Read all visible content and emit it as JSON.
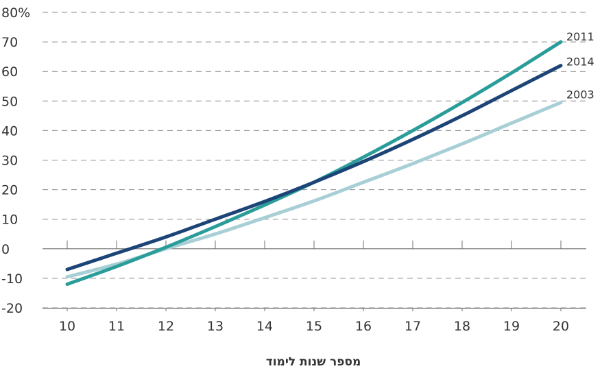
{
  "chart_data": {
    "type": "line",
    "xlabel": "מספר שנות לימוד",
    "ylabel": "",
    "x": [
      10,
      11,
      12,
      13,
      14,
      15,
      16,
      17,
      18,
      19,
      20
    ],
    "xlim": [
      9.5,
      20.5
    ],
    "ylim": [
      -20,
      80
    ],
    "y_ticks": [
      -20,
      -10,
      0,
      10,
      20,
      30,
      40,
      50,
      60,
      70,
      80
    ],
    "y_tick_labels": [
      "-20",
      "-10",
      "0",
      "10",
      "20",
      "30",
      "40",
      "50",
      "60",
      "70",
      "80%"
    ],
    "x_tick_labels": [
      "10",
      "11",
      "12",
      "13",
      "14",
      "15",
      "16",
      "17",
      "18",
      "19",
      "20"
    ],
    "grid": "horizontal dashed",
    "series": [
      {
        "name": "2003",
        "color": "#a8cfd6",
        "values": [
          -9.5,
          -5.2,
          0,
          5.0,
          10.5,
          16.2,
          22.5,
          28.8,
          35.5,
          42.5,
          49.5
        ]
      },
      {
        "name": "2011",
        "color": "#2a9d9a",
        "values": [
          -12,
          -6,
          0.5,
          7.5,
          14.8,
          22.5,
          31,
          40,
          49.5,
          59.5,
          70
        ]
      },
      {
        "name": "2014",
        "color": "#1d4477",
        "values": [
          -7,
          -1.5,
          4,
          10,
          16,
          22.5,
          29.5,
          37,
          45,
          53.5,
          62
        ]
      }
    ]
  }
}
